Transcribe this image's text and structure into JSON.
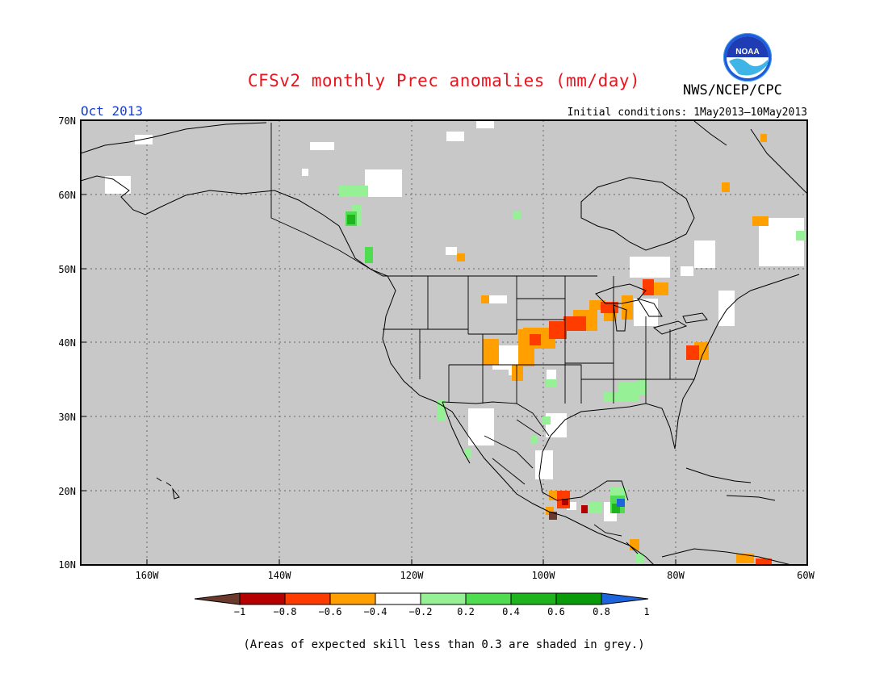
{
  "header": {
    "title": "CFSv2 monthly Prec anomalies (mm/day)",
    "agency": "NWS/NCEP/CPC",
    "logo_text": "NOAA",
    "valid_month": "Oct 2013",
    "initial_conditions": "Initial conditions: 1May2013–10May2013"
  },
  "map": {
    "lat_labels": [
      "70N",
      "60N",
      "50N",
      "40N",
      "30N",
      "20N",
      "10N"
    ],
    "lon_labels": [
      "160W",
      "140W",
      "120W",
      "100W",
      "80W",
      "60W"
    ],
    "ocean_color": "#c8c8c8",
    "land_low_skill_color": "#c8c8c8"
  },
  "colorbar": {
    "tick_labels": [
      "−1",
      "−0.8",
      "−0.6",
      "−0.4",
      "−0.2",
      "0.2",
      "0.4",
      "0.6",
      "0.8",
      "1"
    ],
    "colors": [
      "#6b3a2c",
      "#b40000",
      "#ff3c00",
      "#ffa000",
      "#ffffff",
      "#96f096",
      "#50dc50",
      "#1eb41e",
      "#0a9b0a",
      "#1e64dc"
    ]
  },
  "footnote": "(Areas of expected skill less than 0.3 are shaded in grey.)"
}
